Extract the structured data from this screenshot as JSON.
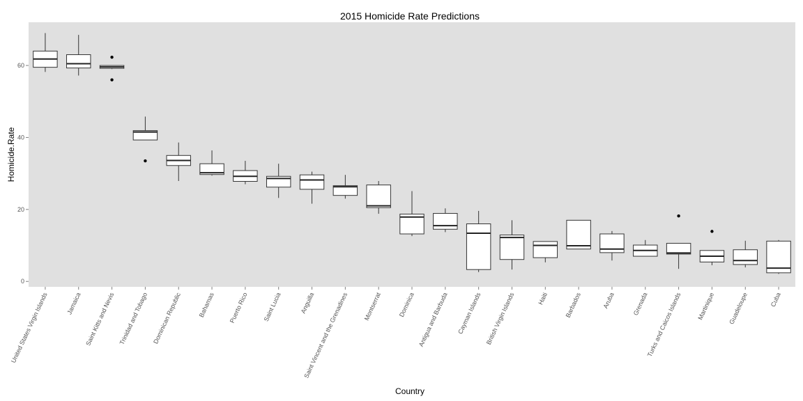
{
  "chart_data": {
    "type": "boxplot",
    "title": "2015 Homicide Rate Predictions",
    "xlabel": "Country",
    "ylabel": "Homicide.Rate",
    "ylim": [
      -1.5,
      72
    ],
    "yticks": [
      0,
      20,
      40,
      60
    ],
    "grid": false,
    "background": "#e0e0e0",
    "categories": [
      "United States Virgin Islands",
      "Jamaica",
      "Saint Kitts and Nevis",
      "Trinidad and Tobago",
      "Dominican Republic",
      "Bahamas",
      "Puerto Rico",
      "Saint Lucia",
      "Anguilla",
      "Saint Vincent and the Grenadines",
      "Montserrat",
      "Dominica",
      "Antigua and Barbuda",
      "Cayman Islands",
      "British Virgin Islands",
      "Haiti",
      "Barbados",
      "Aruba",
      "Grenada",
      "Turks and Caicos Islands",
      "Martinique",
      "Guadeloupe",
      "Cuba"
    ],
    "boxes": [
      {
        "min": 58.2,
        "q1": 59.5,
        "median": 61.8,
        "q3": 64.0,
        "max": 69.0,
        "outliers": []
      },
      {
        "min": 57.2,
        "q1": 59.3,
        "median": 60.5,
        "q3": 63.0,
        "max": 68.5,
        "outliers": []
      },
      {
        "min": 59.0,
        "q1": 59.2,
        "median": 59.6,
        "q3": 60.0,
        "max": 60.0,
        "outliers": [
          62.3,
          56.0
        ]
      },
      {
        "min": 39.3,
        "q1": 39.3,
        "median": 41.5,
        "q3": 41.9,
        "max": 45.8,
        "outliers": [
          33.5
        ]
      },
      {
        "min": 27.9,
        "q1": 32.2,
        "median": 33.6,
        "q3": 35.0,
        "max": 38.6,
        "outliers": []
      },
      {
        "min": 29.4,
        "q1": 29.7,
        "median": 30.2,
        "q3": 32.7,
        "max": 36.4,
        "outliers": []
      },
      {
        "min": 27.0,
        "q1": 27.8,
        "median": 29.2,
        "q3": 30.8,
        "max": 33.5,
        "outliers": []
      },
      {
        "min": 23.2,
        "q1": 26.2,
        "median": 28.6,
        "q3": 29.2,
        "max": 32.7,
        "outliers": []
      },
      {
        "min": 21.6,
        "q1": 25.6,
        "median": 28.2,
        "q3": 29.6,
        "max": 30.5,
        "outliers": []
      },
      {
        "min": 23.0,
        "q1": 23.9,
        "median": 26.3,
        "q3": 26.6,
        "max": 29.6,
        "outliers": []
      },
      {
        "min": 18.8,
        "q1": 20.5,
        "median": 21.0,
        "q3": 26.8,
        "max": 27.9,
        "outliers": []
      },
      {
        "min": 12.6,
        "q1": 13.2,
        "median": 17.9,
        "q3": 18.7,
        "max": 25.1,
        "outliers": []
      },
      {
        "min": 13.7,
        "q1": 14.5,
        "median": 15.5,
        "q3": 18.9,
        "max": 20.3,
        "outliers": []
      },
      {
        "min": 2.6,
        "q1": 3.3,
        "median": 13.4,
        "q3": 16.0,
        "max": 19.6,
        "outliers": []
      },
      {
        "min": 3.3,
        "q1": 6.1,
        "median": 12.2,
        "q3": 12.9,
        "max": 17.0,
        "outliers": []
      },
      {
        "min": 5.3,
        "q1": 6.6,
        "median": 10.0,
        "q3": 11.1,
        "max": 11.1,
        "outliers": []
      },
      {
        "min": 9.0,
        "q1": 9.0,
        "median": 9.9,
        "q3": 17.0,
        "max": 17.0,
        "outliers": []
      },
      {
        "min": 5.8,
        "q1": 8.0,
        "median": 9.0,
        "q3": 13.2,
        "max": 14.0,
        "outliers": []
      },
      {
        "min": 7.0,
        "q1": 7.0,
        "median": 8.6,
        "q3": 10.1,
        "max": 11.5,
        "outliers": []
      },
      {
        "min": 3.5,
        "q1": 7.6,
        "median": 7.9,
        "q3": 10.6,
        "max": 10.6,
        "outliers": [
          18.2
        ]
      },
      {
        "min": 4.5,
        "q1": 5.4,
        "median": 7.0,
        "q3": 8.6,
        "max": 8.6,
        "outliers": [
          13.9
        ]
      },
      {
        "min": 3.9,
        "q1": 4.7,
        "median": 5.8,
        "q3": 8.8,
        "max": 11.3,
        "outliers": []
      },
      {
        "min": 2.1,
        "q1": 2.4,
        "median": 3.7,
        "q3": 11.2,
        "max": 11.5,
        "outliers": []
      }
    ]
  }
}
